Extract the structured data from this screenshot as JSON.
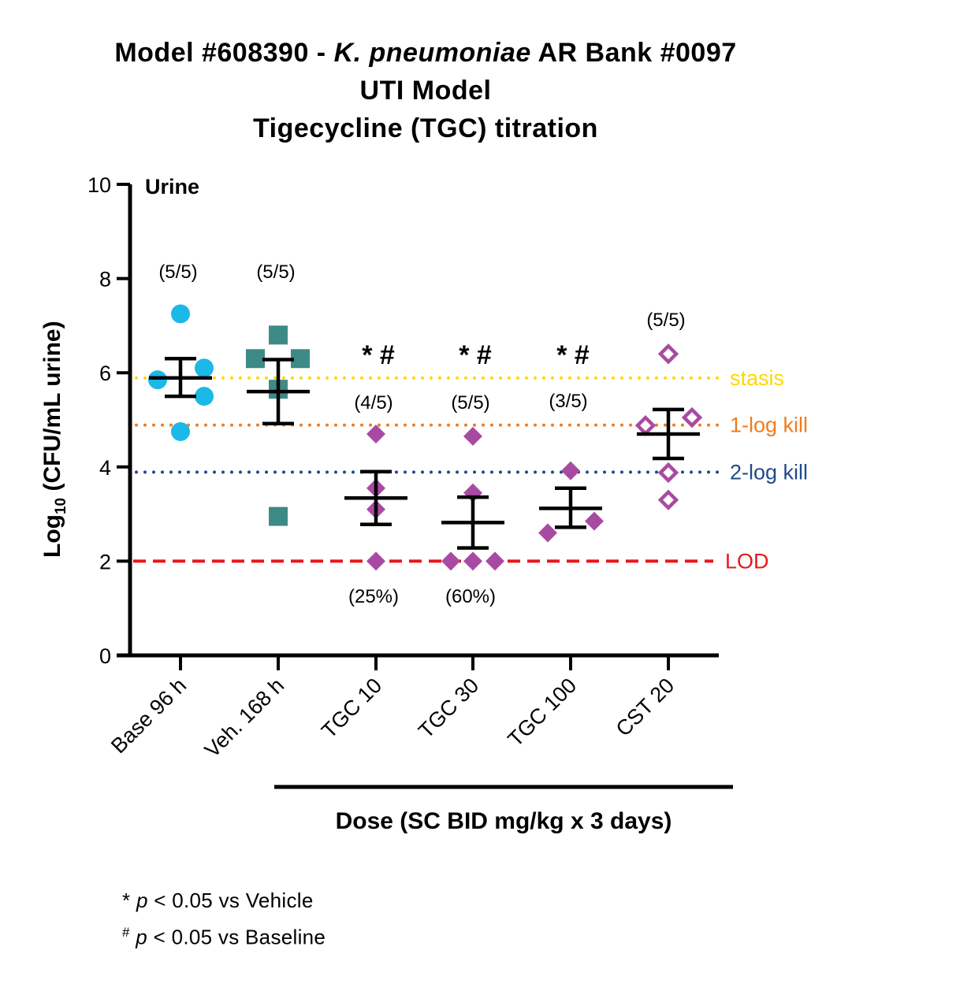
{
  "title": {
    "line1_prefix": "Model #608390 - ",
    "line1_species": "K. pneumoniae",
    "line1_suffix": " AR Bank #0097",
    "line2": "UTI Model",
    "line3": "Tigecycline (TGC) titration"
  },
  "chart_data": {
    "type": "scatter",
    "panel_label": "Urine",
    "ylabel_prefix": "Log",
    "ylabel_sub": "10",
    "ylabel_suffix": " (CFU/mL urine)",
    "xlabel": "Dose (SC BID mg/kg x 3 days)",
    "ylim": [
      0,
      10
    ],
    "yticks": [
      "0",
      "2",
      "4",
      "6",
      "8",
      "10"
    ],
    "categories": [
      "Base 96 h",
      "Veh. 168 h",
      "TGC 10",
      "TGC 30",
      "TGC 100",
      "CST 20"
    ],
    "series": [
      {
        "category": "Base 96 h",
        "marker": "circle",
        "color": "#1bb8e8",
        "points": [
          7.25,
          5.85,
          6.1,
          5.5,
          4.75
        ],
        "mean": 5.89,
        "sem_low": 5.5,
        "sem_high": 6.3,
        "count": "(5/5)",
        "sig": "",
        "pct": ""
      },
      {
        "category": "Veh. 168 h",
        "marker": "square",
        "color": "#3d8a86",
        "points": [
          6.8,
          6.3,
          6.3,
          5.65,
          2.95
        ],
        "mean": 5.6,
        "sem_low": 4.92,
        "sem_high": 6.28,
        "count": "(5/5)",
        "sig": "* #",
        "pct": ""
      },
      {
        "category": "TGC 10",
        "marker": "diamond",
        "color": "#a94aa2",
        "points": [
          4.7,
          3.55,
          3.1,
          2.0
        ],
        "mean": 3.34,
        "sem_low": 2.78,
        "sem_high": 3.9,
        "count": "(4/5)",
        "sig": "* #",
        "pct": "(25%)"
      },
      {
        "category": "TGC 30",
        "marker": "diamond",
        "color": "#a94aa2",
        "points": [
          4.65,
          3.45,
          2.0,
          2.0,
          2.0
        ],
        "mean": 2.82,
        "sem_low": 2.28,
        "sem_high": 3.36,
        "count": "(5/5)",
        "sig": "* #",
        "pct": "(60%)"
      },
      {
        "category": "TGC 100",
        "marker": "diamond",
        "color": "#a94aa2",
        "points": [
          3.92,
          2.85,
          2.6
        ],
        "mean": 3.12,
        "sem_low": 2.72,
        "sem_high": 3.55,
        "count": "(3/5)",
        "sig": "",
        "pct": ""
      },
      {
        "category": "CST 20",
        "marker": "diamond-open",
        "color": "#a94aa2",
        "points": [
          6.4,
          5.05,
          4.88,
          3.88,
          3.3
        ],
        "mean": 4.7,
        "sem_low": 4.18,
        "sem_high": 5.22,
        "count": "(5/5)",
        "sig": "",
        "pct": ""
      }
    ],
    "reference_lines": [
      {
        "label": "stasis",
        "y": 5.89,
        "color": "#ffd700",
        "style": "dotted"
      },
      {
        "label": "1-log kill",
        "y": 4.89,
        "color": "#f07b1d",
        "style": "dotted"
      },
      {
        "label": "2-log kill",
        "y": 3.89,
        "color": "#1f4a8c",
        "style": "dotted"
      },
      {
        "label": "LOD",
        "y": 2.0,
        "color": "#e8161c",
        "style": "dashed"
      }
    ],
    "legend": "none",
    "grid": false
  },
  "footnotes": {
    "line1_mark": "*",
    "line1_p": "p",
    "line1_text": " < 0.05 vs Vehicle",
    "line2_mark": "#",
    "line2_p": "p",
    "line2_text": " < 0.05 vs Baseline"
  }
}
